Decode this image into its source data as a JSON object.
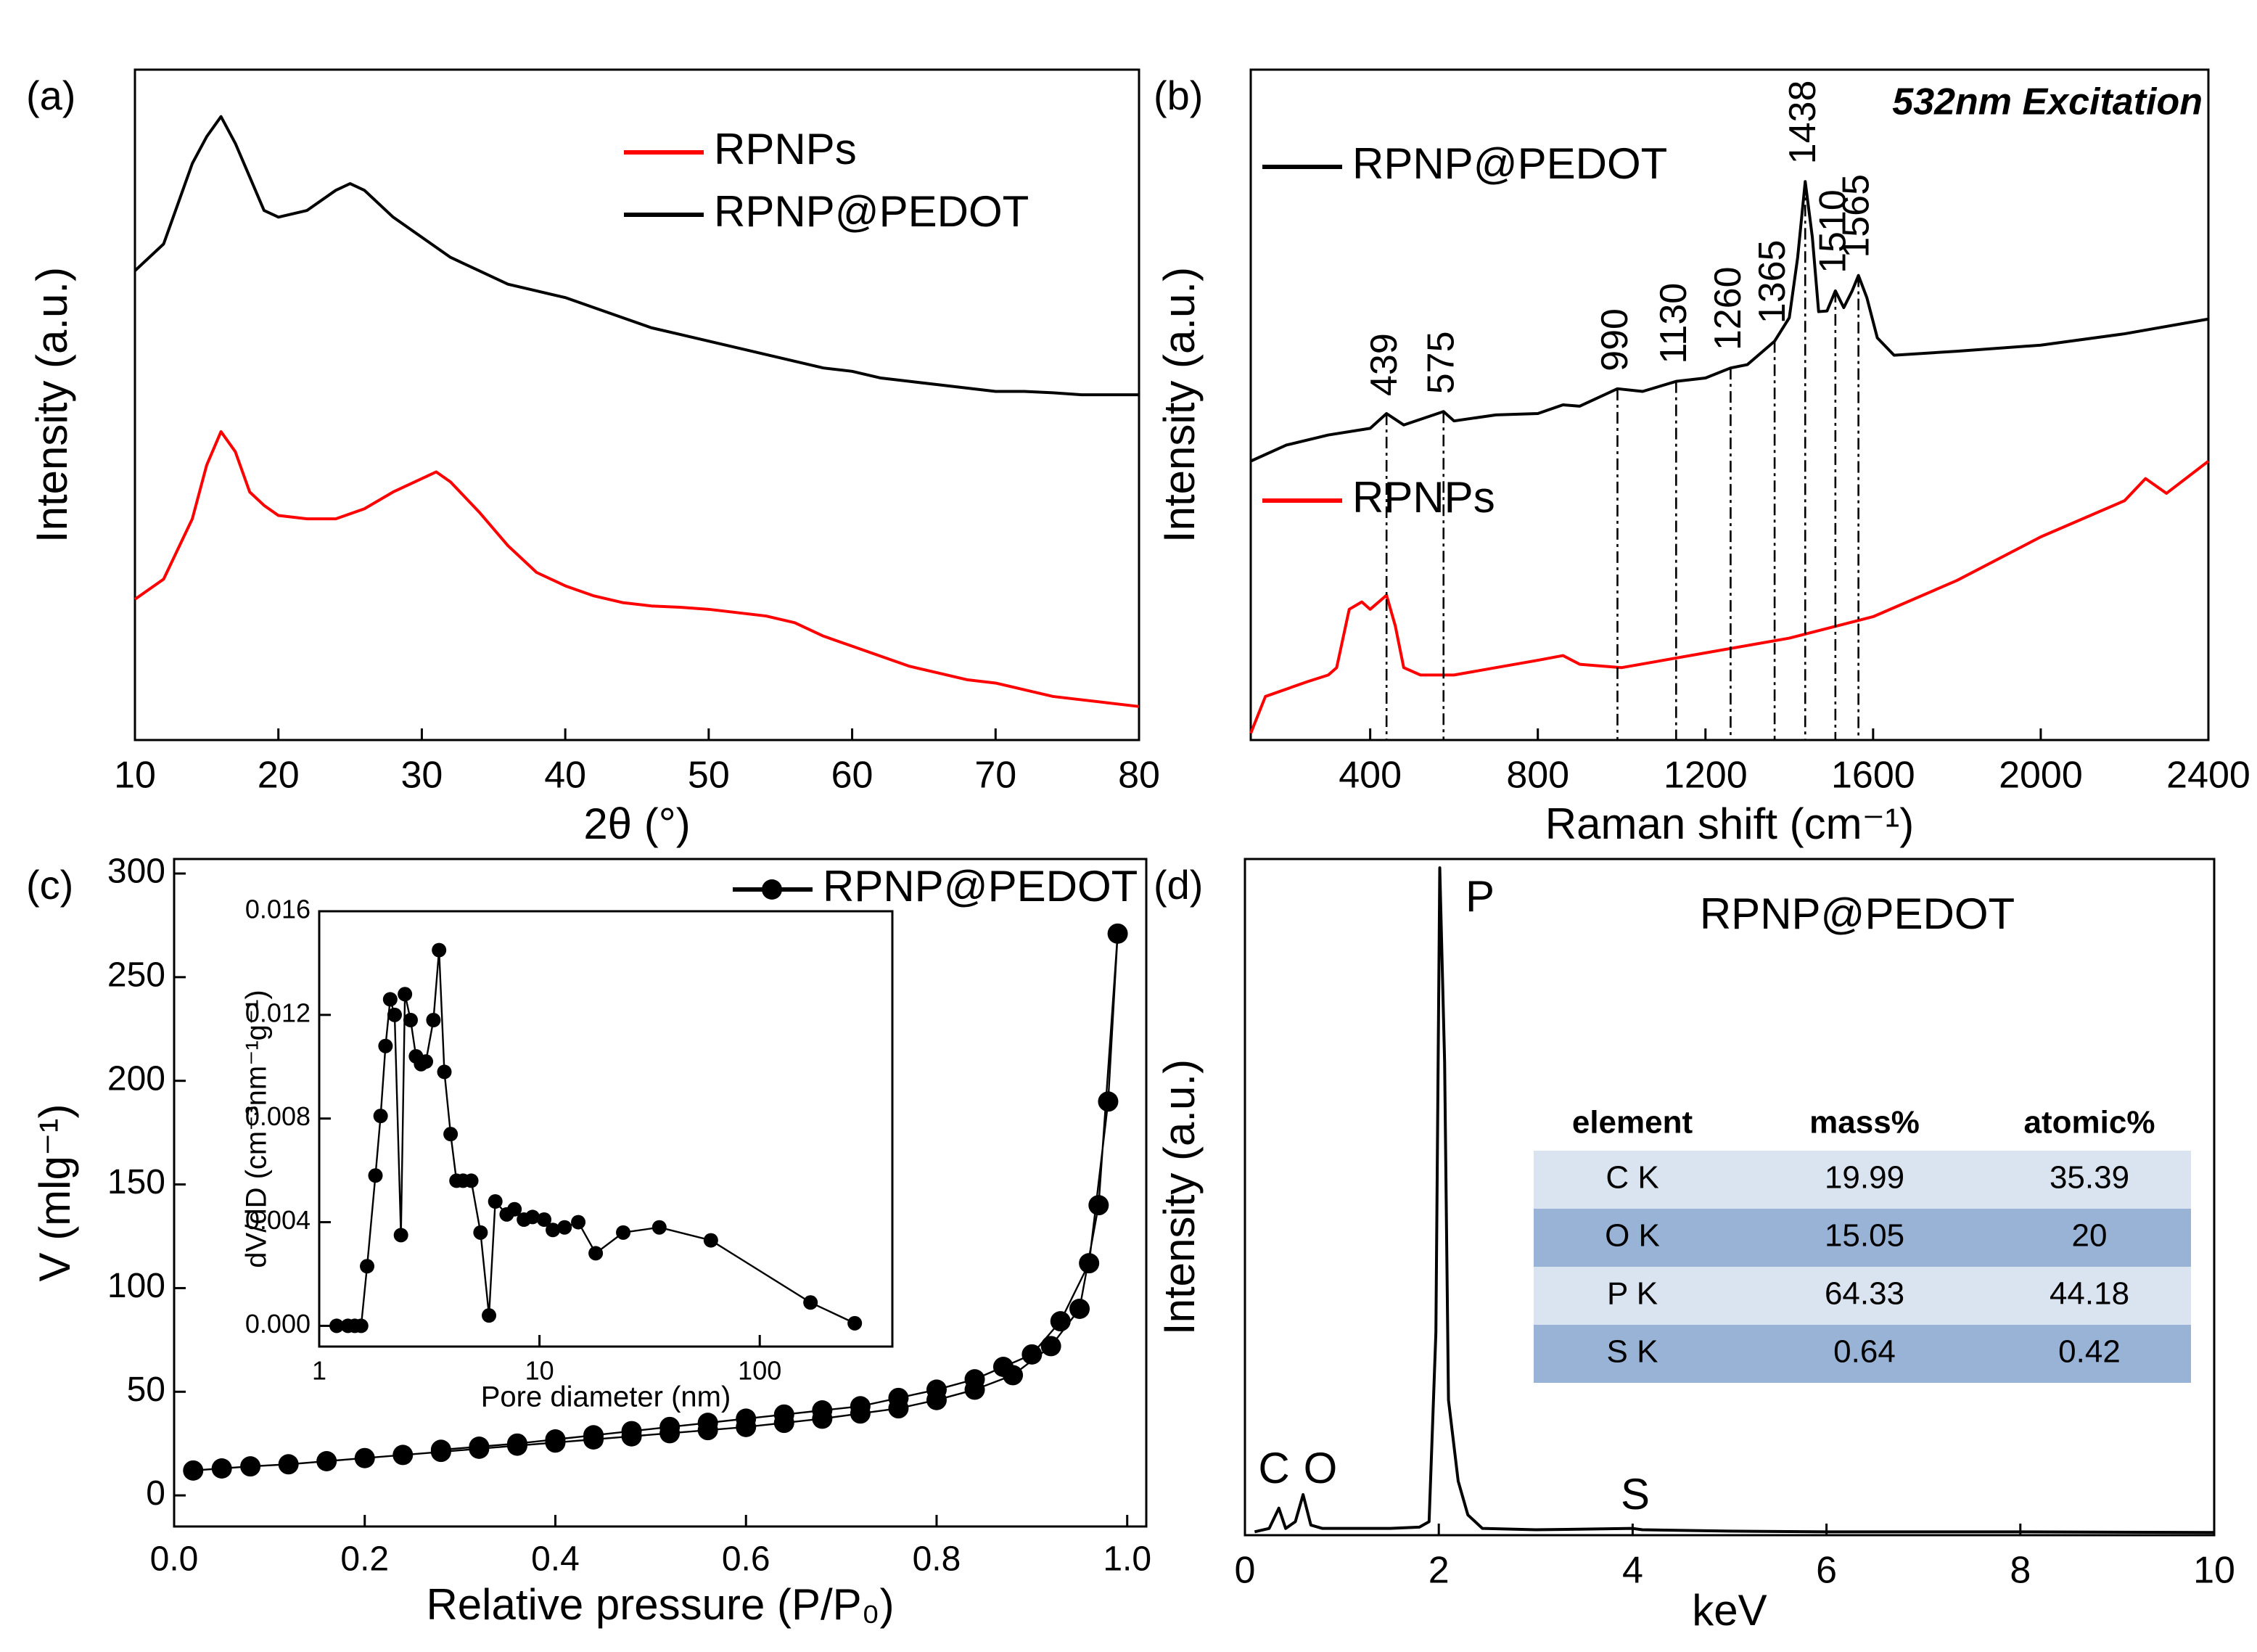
{
  "chart_data": [
    {
      "type": "line",
      "panel_label": "(a)",
      "x_label": "2θ (°)",
      "y_label": "Intensity (a.u.)",
      "xlim": [
        10,
        80
      ],
      "xticks": [
        10,
        20,
        30,
        40,
        50,
        60,
        70,
        80
      ],
      "ylim": [
        0,
        100
      ],
      "series": [
        {
          "name": "RPNPs",
          "color": "#ff0000",
          "x": [
            10,
            12,
            14,
            15,
            16,
            17,
            18,
            19,
            20,
            22,
            24,
            26,
            28,
            30,
            31,
            32,
            34,
            36,
            38,
            40,
            42,
            44,
            46,
            48,
            50,
            52,
            54,
            56,
            58,
            60,
            62,
            64,
            66,
            68,
            70,
            72,
            74,
            76,
            78,
            80
          ],
          "values": [
            21,
            24,
            33,
            41,
            46,
            43,
            37,
            35,
            33.5,
            33,
            33,
            34.5,
            37,
            39,
            40,
            38.5,
            34,
            29,
            25,
            23,
            21.5,
            20.5,
            20,
            19.8,
            19.5,
            19,
            18.5,
            17.5,
            15.5,
            14,
            12.5,
            11,
            10,
            9,
            8.5,
            7.5,
            6.5,
            6,
            5.5,
            5
          ]
        },
        {
          "name": "RPNP@PEDOT",
          "color": "#000000",
          "x": [
            10,
            12,
            14,
            15,
            16,
            17,
            18,
            19,
            20,
            22,
            24,
            25,
            26,
            28,
            30,
            32,
            34,
            36,
            38,
            40,
            42,
            44,
            46,
            48,
            50,
            52,
            54,
            56,
            58,
            60,
            62,
            64,
            66,
            68,
            70,
            72,
            74,
            76,
            78,
            80
          ],
          "values": [
            70,
            74,
            86,
            90,
            93,
            89,
            84,
            79,
            78,
            79,
            82,
            83,
            82,
            78,
            75,
            72,
            70,
            68,
            67,
            66,
            64.5,
            63,
            61.5,
            60.5,
            59.5,
            58.5,
            57.5,
            56.5,
            55.5,
            55,
            54,
            53.5,
            53,
            52.5,
            52,
            52,
            51.8,
            51.5,
            51.5,
            51.5
          ]
        }
      ]
    },
    {
      "type": "line",
      "panel_label": "(b)",
      "x_label": "Raman shift (cm⁻¹)",
      "y_label": "Intensity (a.u.)",
      "annotation": "532nm Excitation",
      "xlim": [
        115,
        2400
      ],
      "xticks": [
        400,
        800,
        1200,
        1600,
        2000,
        2400
      ],
      "ylim": [
        0,
        100
      ],
      "peaks": [
        439,
        575,
        990,
        1130,
        1260,
        1365,
        1438,
        1510,
        1565
      ],
      "series": [
        {
          "name": "RPNP@PEDOT",
          "color": "#000000",
          "x": [
            115,
            200,
            300,
            400,
            439,
            480,
            575,
            600,
            700,
            800,
            860,
            900,
            990,
            1050,
            1130,
            1200,
            1260,
            1300,
            1365,
            1400,
            1420,
            1438,
            1455,
            1470,
            1490,
            1510,
            1530,
            1550,
            1565,
            1585,
            1610,
            1650,
            1800,
            2000,
            2200,
            2400
          ],
          "values": [
            41.6,
            44,
            45.5,
            46.5,
            48.7,
            47,
            49,
            47.6,
            48.5,
            48.7,
            50,
            49.8,
            52.4,
            52,
            53.5,
            54,
            55.5,
            56,
            59.5,
            63,
            72,
            83.3,
            75,
            63.9,
            64,
            67,
            64.5,
            67,
            69.3,
            66,
            60,
            57.4,
            58,
            58.9,
            60.6,
            62.8
          ]
        },
        {
          "name": "RPNPs",
          "color": "#ff0000",
          "x": [
            115,
            150,
            250,
            300,
            320,
            350,
            380,
            400,
            439,
            460,
            480,
            520,
            600,
            700,
            800,
            860,
            900,
            1000,
            1200,
            1400,
            1600,
            1800,
            2000,
            2200,
            2250,
            2300,
            2400
          ],
          "values": [
            1,
            6.5,
            8.7,
            9.7,
            10.8,
            19.5,
            20.6,
            19.5,
            21.6,
            17,
            10.8,
            9.7,
            9.7,
            10.8,
            11.9,
            12.6,
            11.3,
            10.8,
            13,
            15.2,
            18.4,
            23.8,
            30.3,
            35.7,
            39,
            36.8,
            41.6
          ]
        }
      ]
    },
    {
      "type": "line",
      "panel_label": "(c)",
      "x_label": "Relative pressure (P/P₀)",
      "y_label": "V (mlg⁻¹)",
      "markers": true,
      "xlim": [
        0,
        1.02
      ],
      "xticks": [
        {
          "value": 0,
          "label": "0.0"
        },
        0.2,
        0.4,
        0.6,
        0.8,
        {
          "value": 1,
          "label": "1.0"
        }
      ],
      "ylim": [
        -15,
        307
      ],
      "yticks": [
        0,
        50,
        100,
        150,
        200,
        250,
        300
      ],
      "series": [
        {
          "name": "RPNP@PEDOT",
          "color": "#000000",
          "x": [
            0.02,
            0.05,
            0.08,
            0.12,
            0.16,
            0.2,
            0.24,
            0.28,
            0.32,
            0.36,
            0.4,
            0.44,
            0.48,
            0.52,
            0.56,
            0.6,
            0.64,
            0.68,
            0.72,
            0.76,
            0.8,
            0.84,
            0.88,
            0.92,
            0.95,
            0.97,
            0.99,
            0.98,
            0.96,
            0.93,
            0.9,
            0.87,
            0.84,
            0.8,
            0.76,
            0.72,
            0.68,
            0.64,
            0.6,
            0.56,
            0.52,
            0.48,
            0.44,
            0.4,
            0.36,
            0.32,
            0.28
          ],
          "values": [
            12,
            13,
            14,
            15,
            16.5,
            18,
            19.5,
            21,
            22.5,
            24,
            25.5,
            27,
            28.5,
            30,
            31.5,
            33,
            35,
            37,
            39.5,
            42,
            46,
            51,
            58,
            72,
            90,
            140,
            271,
            190,
            112,
            84,
            68,
            62,
            56,
            51,
            47,
            43,
            41,
            39,
            37,
            35,
            33,
            31,
            29,
            27,
            25,
            23.5,
            22
          ]
        }
      ]
    },
    {
      "type": "line",
      "x_label": "Pore diameter (nm)",
      "y_label": "dV/dD (cm⁻³nm⁻¹g⁻¹)",
      "markers": true,
      "log_x": true,
      "xlim": [
        1,
        400
      ],
      "xticks": [
        1,
        10,
        100
      ],
      "ylim": [
        -0.0008,
        0.016
      ],
      "yticks": [
        {
          "value": 0,
          "label": "0.000"
        },
        {
          "value": 0.004,
          "label": "0.004"
        },
        {
          "value": 0.008,
          "label": "0.008"
        },
        {
          "value": 0.012,
          "label": "0.012"
        },
        {
          "value": 0.016,
          "label": "0.016"
        }
      ],
      "series": [
        {
          "color": "#000000",
          "x": [
            1.2,
            1.35,
            1.45,
            1.55,
            1.65,
            1.8,
            1.9,
            2.0,
            2.1,
            2.2,
            2.35,
            2.45,
            2.6,
            2.75,
            2.9,
            3.05,
            3.3,
            3.5,
            3.7,
            3.95,
            4.2,
            4.5,
            4.9,
            5.4,
            5.9,
            6.3,
            7.1,
            7.7,
            8.5,
            9.3,
            10.5,
            11.5,
            13,
            15,
            18,
            24,
            35,
            60,
            170,
            270
          ],
          "values": [
            0,
            0,
            0,
            0,
            0.0023,
            0.0058,
            0.0081,
            0.0108,
            0.0126,
            0.012,
            0.0035,
            0.0128,
            0.0118,
            0.0104,
            0.0101,
            0.0102,
            0.0118,
            0.0145,
            0.0098,
            0.0074,
            0.0056,
            0.0056,
            0.0056,
            0.0036,
            0.0004,
            0.0048,
            0.0043,
            0.0045,
            0.0041,
            0.0042,
            0.0041,
            0.0037,
            0.0038,
            0.004,
            0.0028,
            0.0036,
            0.0038,
            0.0033,
            0.0009,
            0.0001
          ]
        }
      ]
    },
    {
      "type": "line",
      "panel_label": "(d)",
      "title": "RPNP@PEDOT",
      "x_label": "keV",
      "y_label": "Intensity (a.u.)",
      "xlim": [
        0,
        10
      ],
      "xticks": [
        0,
        2,
        4,
        6,
        8,
        10
      ],
      "ylim": [
        0,
        100
      ],
      "element_labels": [
        "C",
        "O",
        "P",
        "S"
      ],
      "series": [
        {
          "color": "#000000",
          "x": [
            0.1,
            0.25,
            0.35,
            0.42,
            0.52,
            0.6,
            0.68,
            0.8,
            1.0,
            1.5,
            1.8,
            1.9,
            1.97,
            2.01,
            2.06,
            2.1,
            2.2,
            2.3,
            2.45,
            3,
            4,
            4.1,
            5,
            6,
            8,
            10
          ],
          "values": [
            0.5,
            1,
            4,
            1,
            2,
            6,
            1.5,
            1,
            1,
            1,
            1.2,
            2,
            30,
            98.7,
            70,
            20,
            8,
            3,
            1,
            0.8,
            1,
            0.8,
            0.6,
            0.5,
            0.5,
            0.4
          ]
        }
      ],
      "table": {
        "header": [
          "element",
          "mass%",
          "atomic%"
        ],
        "rows": [
          [
            "C K",
            19.99,
            35.39
          ],
          [
            "O K",
            15.05,
            20
          ],
          [
            "P K",
            64.33,
            44.18
          ],
          [
            "S K",
            0.64,
            0.42
          ]
        ],
        "row_colors": [
          "#dae3f0",
          "#98b3d6",
          "#dae3f0",
          "#98b3d6"
        ]
      }
    }
  ]
}
